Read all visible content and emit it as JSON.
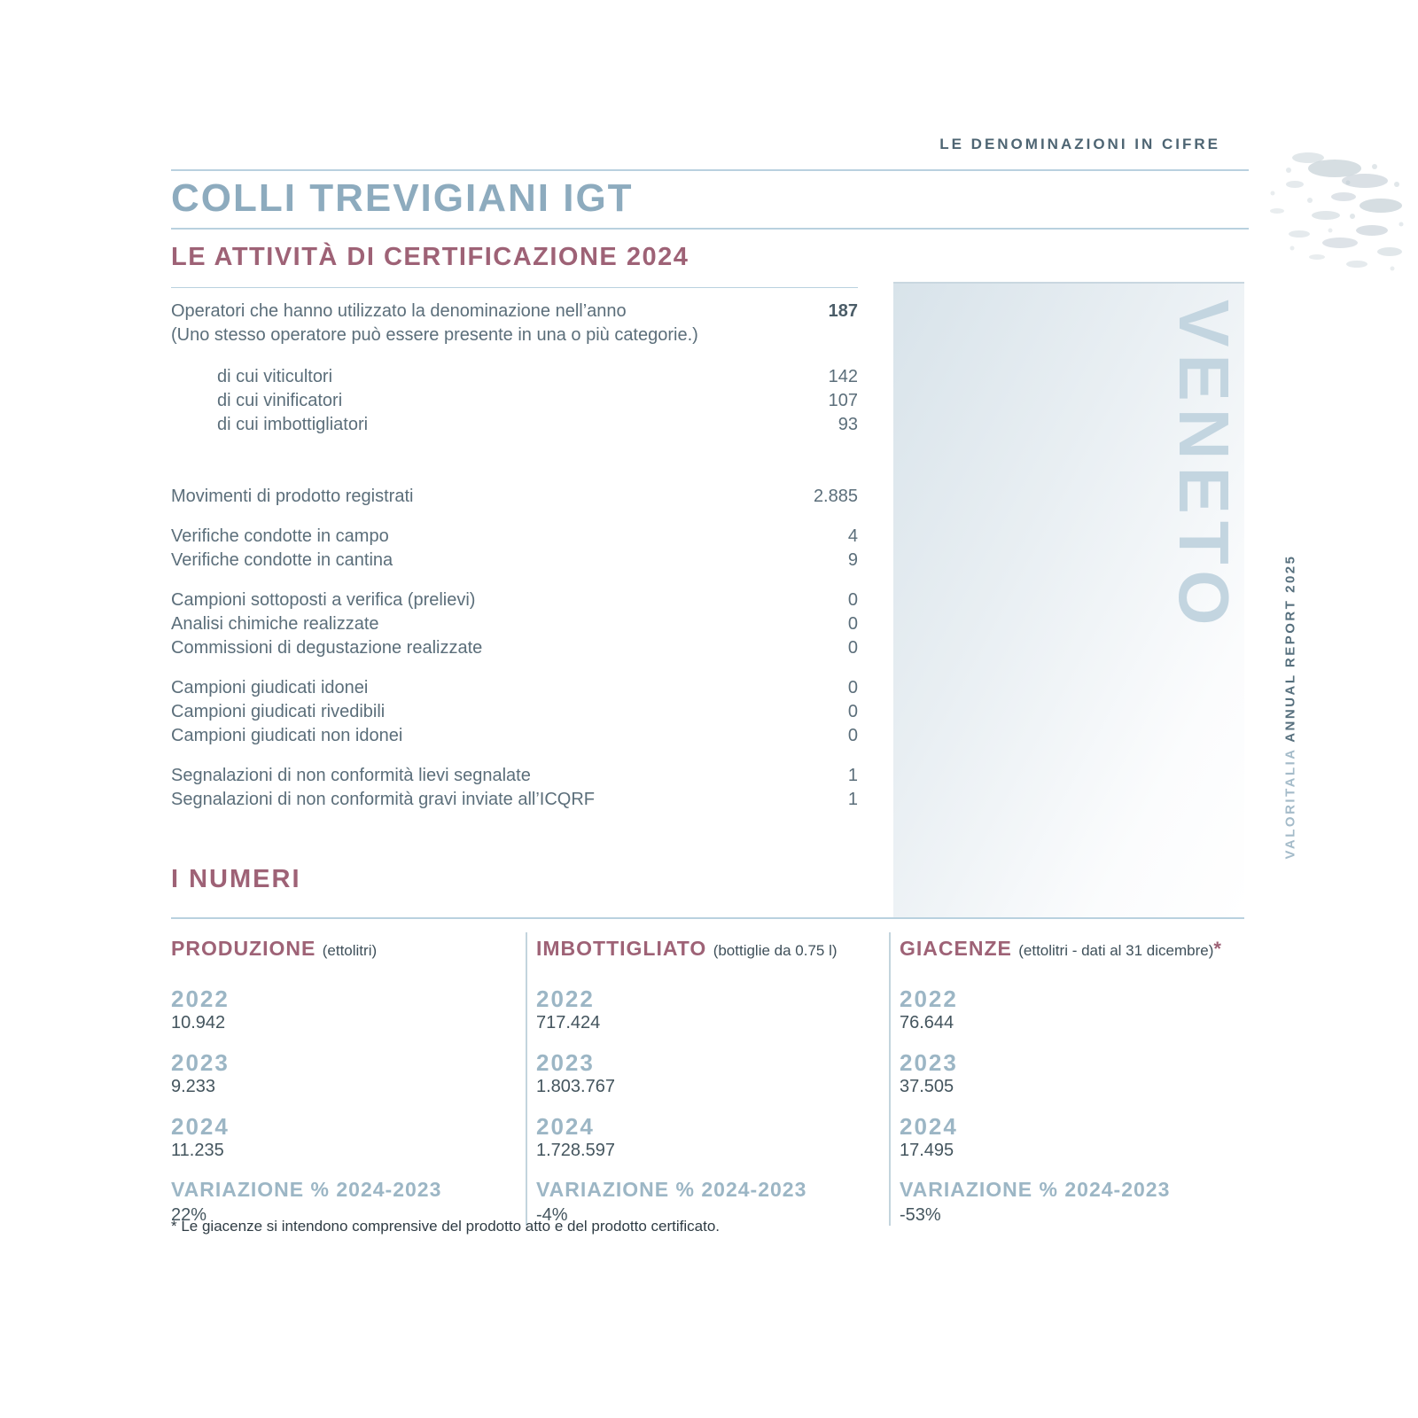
{
  "page": {
    "eyebrow": "LE DENOMINAZIONI IN CIFRE",
    "title": "COLLI TREVIGIANI IGT",
    "subtitle": "LE ATTIVITÀ DI CERTIFICAZIONE 2024",
    "region_label": "VENETO",
    "sidebar_brand": "VALORITALIA",
    "sidebar_report": "ANNUAL REPORT 2025"
  },
  "colors": {
    "steel_blue_title": "#8dabbe",
    "maroon_accent": "#9e6276",
    "slate_text": "#5b6e7a",
    "light_blue_label": "#9cb6c5",
    "rule_blue": "#b9d1df",
    "veneto_watermark": "#c3d5e0",
    "eyebrow_slate": "#4e6573"
  },
  "stats": {
    "intro": {
      "label": "Operatori che hanno utilizzato la denominazione nell’anno",
      "note": "(Uno stesso operatore può essere presente in una o più categorie.)",
      "value": "187"
    },
    "sub_rows": [
      {
        "label": "di cui viticultori",
        "value": "142"
      },
      {
        "label": "di cui vinificatori",
        "value": "107"
      },
      {
        "label": "di cui imbottigliatori",
        "value": "93"
      }
    ],
    "groups": [
      [
        {
          "label": "Movimenti di prodotto registrati",
          "value": "2.885"
        }
      ],
      [
        {
          "label": "Verifiche condotte in campo",
          "value": "4"
        },
        {
          "label": "Verifiche condotte in cantina",
          "value": "9"
        }
      ],
      [
        {
          "label": "Campioni sottoposti a verifica (prelievi)",
          "value": "0"
        },
        {
          "label": "Analisi chimiche realizzate",
          "value": "0"
        },
        {
          "label": "Commissioni di degustazione realizzate",
          "value": "0"
        }
      ],
      [
        {
          "label": "Campioni giudicati idonei",
          "value": "0"
        },
        {
          "label": "Campioni giudicati rivedibili",
          "value": "0"
        },
        {
          "label": "Campioni giudicati non idonei",
          "value": "0"
        }
      ],
      [
        {
          "label": "Segnalazioni di non conformità lievi segnalate",
          "value": "1"
        },
        {
          "label": "Segnalazioni di non conformità gravi inviate all’ICQRF",
          "value": "1"
        }
      ]
    ]
  },
  "numbers": {
    "title": "I NUMERI",
    "columns": [
      {
        "title": "PRODUZIONE",
        "unit": "(ettolitri)",
        "asterisk": "",
        "years": [
          {
            "year": "2022",
            "value": "10.942"
          },
          {
            "year": "2023",
            "value": "9.233"
          },
          {
            "year": "2024",
            "value": "11.235"
          }
        ],
        "variation_label": "VARIAZIONE % 2024-2023",
        "variation_value": "22%"
      },
      {
        "title": "IMBOTTIGLIATO",
        "unit": "(bottiglie da 0.75 l)",
        "asterisk": "",
        "years": [
          {
            "year": "2022",
            "value": "717.424"
          },
          {
            "year": "2023",
            "value": "1.803.767"
          },
          {
            "year": "2024",
            "value": "1.728.597"
          }
        ],
        "variation_label": "VARIAZIONE % 2024-2023",
        "variation_value": "-4%"
      },
      {
        "title": "GIACENZE",
        "unit": "(ettolitri - dati al 31 dicembre)",
        "asterisk": "*",
        "years": [
          {
            "year": "2022",
            "value": "76.644"
          },
          {
            "year": "2023",
            "value": "37.505"
          },
          {
            "year": "2024",
            "value": "17.495"
          }
        ],
        "variation_label": "VARIAZIONE % 2024-2023",
        "variation_value": "-53%"
      }
    ],
    "footnote": "* Le giacenze si intendono comprensive del prodotto atto e del prodotto certificato."
  }
}
